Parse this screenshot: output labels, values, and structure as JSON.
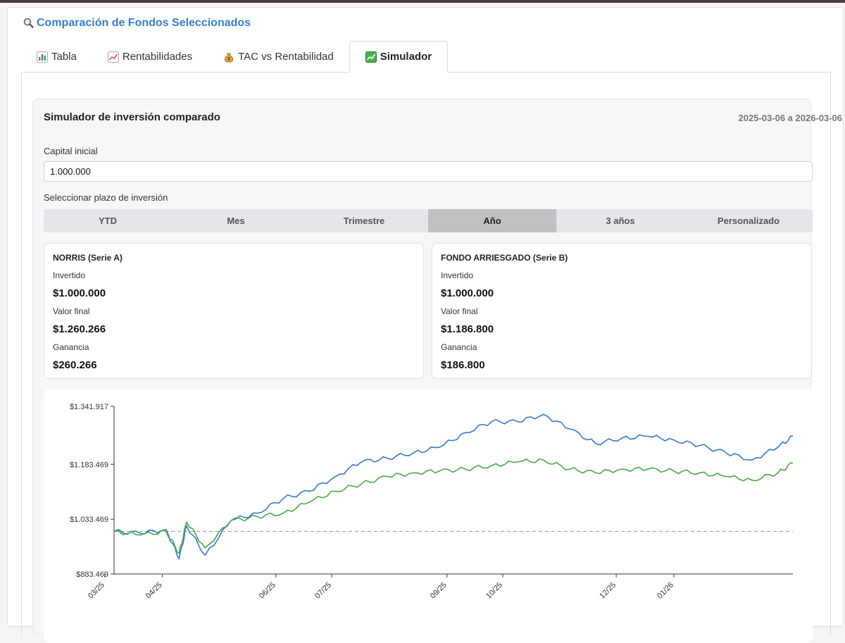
{
  "header": {
    "title": "Comparación de Fondos Seleccionados",
    "icon": "magnifier-icon"
  },
  "tabs": [
    {
      "label": "Tabla",
      "icon": "bar-chart-icon"
    },
    {
      "label": "Rentabilidades",
      "icon": "trend-up-icon"
    },
    {
      "label": "TAC vs Rentabilidad",
      "icon": "money-bag-icon"
    },
    {
      "label": "Simulador",
      "icon": "chart-yen-icon",
      "active": true
    }
  ],
  "simulator": {
    "title": "Simulador de inversión comparado",
    "date_range": "2025-03-06 a 2026-03-06",
    "capital_label": "Capital inicial",
    "capital_value": "1.000.000",
    "plazo_label": "Seleccionar plazo de inversión",
    "plazos": [
      "YTD",
      "Mes",
      "Trimestre",
      "Año",
      "3 años",
      "Personalizado"
    ],
    "selected_plazo": "Año",
    "funds": [
      {
        "name": "NORRIS (Serie A)",
        "invested_label": "Invertido",
        "invested": "$1.000.000",
        "final_label": "Valor final",
        "final": "$1.260.266",
        "gain_label": "Ganancia",
        "gain": "$260.266"
      },
      {
        "name": "FONDO ARRIESGADO (Serie B)",
        "invested_label": "Invertido",
        "invested": "$1.000.000",
        "final_label": "Valor final",
        "final": "$1.186.800",
        "gain_label": "Ganancia",
        "gain": "$186.800"
      }
    ]
  },
  "chart_data": {
    "type": "line",
    "y_tick_labels": [
      "$1.341.917",
      "$1.183.469",
      "$1.033.469",
      "$883.469"
    ],
    "y_ticks": [
      1341917,
      1183469,
      1033469,
      883469
    ],
    "ylim": [
      883469,
      1341917
    ],
    "x_tick_labels": [
      "03/25",
      "04/25",
      "06/25",
      "07/25",
      "09/25",
      "10/25",
      "12/25",
      "01/26"
    ],
    "x_ticks": [
      "2025-03-01",
      "2025-04-01",
      "2025-06-01",
      "2025-07-01",
      "2025-09-01",
      "2025-10-01",
      "2025-12-01",
      "2026-01-01"
    ],
    "x_range": [
      "2025-03-06",
      "2026-03-06"
    ],
    "baseline": 1000000,
    "colors": {
      "norris": "#3b78c3",
      "arriesgado": "#4aa84a",
      "baseline": "#999999"
    },
    "series": [
      {
        "color": "#3b78c3",
        "x": [
          "2025-03-06",
          "2025-03-20",
          "2025-04-03",
          "2025-04-10",
          "2025-04-14",
          "2025-04-24",
          "2025-05-08",
          "2025-05-22",
          "2025-06-05",
          "2025-06-19",
          "2025-07-03",
          "2025-07-17",
          "2025-07-31",
          "2025-08-14",
          "2025-08-28",
          "2025-09-11",
          "2025-09-25",
          "2025-10-09",
          "2025-10-23",
          "2025-11-06",
          "2025-11-20",
          "2025-12-04",
          "2025-12-18",
          "2026-01-01",
          "2026-01-15",
          "2026-01-29",
          "2026-02-12",
          "2026-02-26",
          "2026-03-06"
        ],
        "values": [
          1000000,
          995000,
          1005000,
          925000,
          1015000,
          935000,
          1030000,
          1050000,
          1090000,
          1110000,
          1150000,
          1190000,
          1200000,
          1215000,
          1230000,
          1270000,
          1300000,
          1300000,
          1320000,
          1280000,
          1240000,
          1255000,
          1260000,
          1250000,
          1235000,
          1215000,
          1195000,
          1230000,
          1260266
        ]
      },
      {
        "color": "#4aa84a",
        "x": [
          "2025-03-06",
          "2025-03-20",
          "2025-04-03",
          "2025-04-10",
          "2025-04-14",
          "2025-04-24",
          "2025-05-08",
          "2025-05-22",
          "2025-06-05",
          "2025-06-19",
          "2025-07-03",
          "2025-07-17",
          "2025-07-31",
          "2025-08-14",
          "2025-08-28",
          "2025-09-11",
          "2025-09-25",
          "2025-10-09",
          "2025-10-23",
          "2025-11-06",
          "2025-11-20",
          "2025-12-04",
          "2025-12-18",
          "2026-01-01",
          "2026-01-15",
          "2026-01-29",
          "2026-02-12",
          "2026-02-26",
          "2026-03-06"
        ],
        "values": [
          1000000,
          990000,
          1000000,
          940000,
          1025000,
          955000,
          1030000,
          1040000,
          1050000,
          1080000,
          1110000,
          1130000,
          1150000,
          1160000,
          1165000,
          1170000,
          1180000,
          1190000,
          1195000,
          1170000,
          1160000,
          1170000,
          1170000,
          1165000,
          1160000,
          1150000,
          1140000,
          1160000,
          1186800
        ]
      }
    ]
  }
}
